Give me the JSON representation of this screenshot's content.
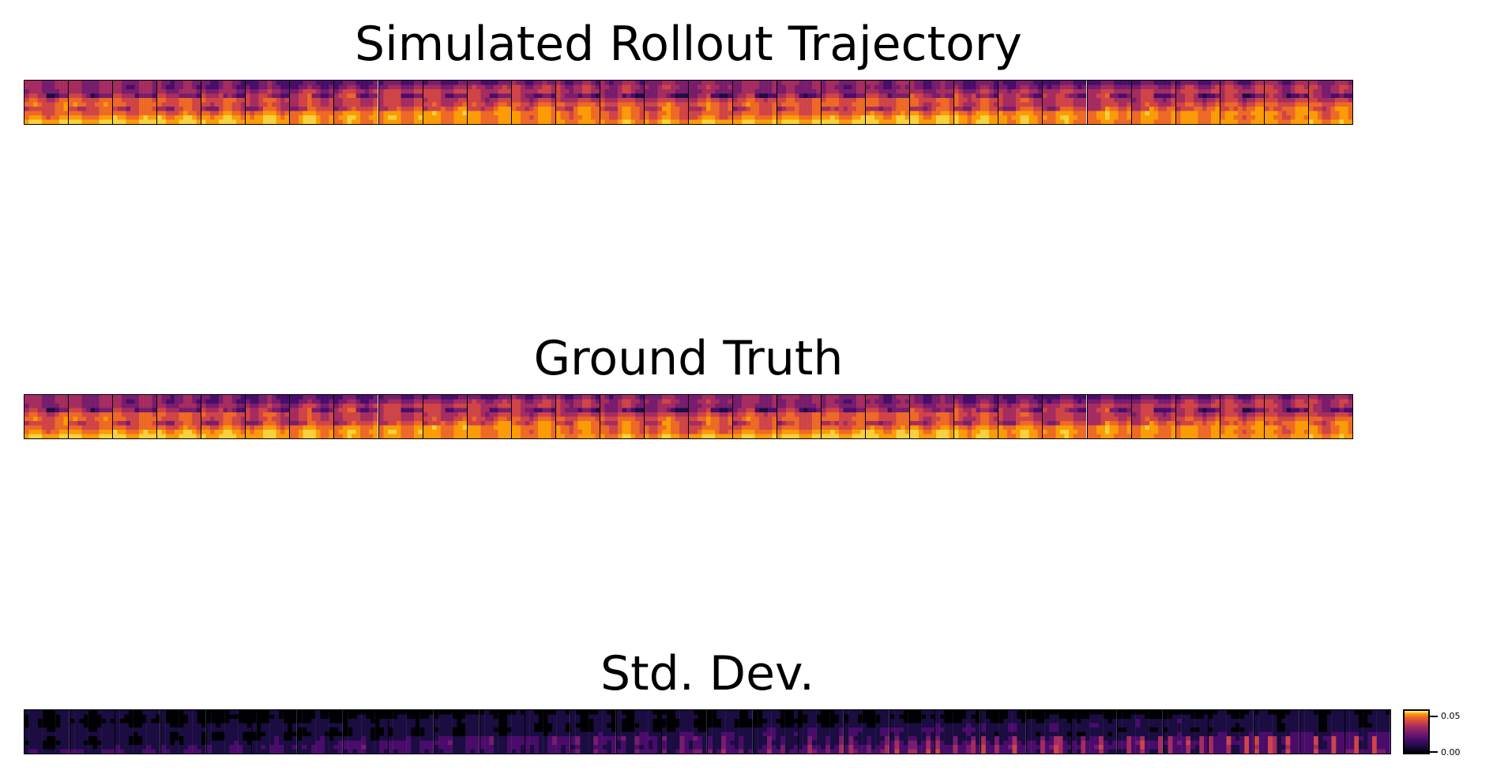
{
  "titles": {
    "rollout": "Simulated Rollout Trajectory",
    "ground_truth": "Ground Truth",
    "std_dev": "Std. Dev."
  },
  "colorbar": {
    "colormap": "inferno",
    "tick_labels": [
      "0.05",
      "0.00"
    ]
  },
  "panels": {
    "rollout": {
      "frames": 30,
      "colormap": "inferno"
    },
    "ground_truth": {
      "frames": 30,
      "colormap": "inferno"
    },
    "std_dev": {
      "frames": 30,
      "colormap": "inferno"
    }
  },
  "colors": {
    "inferno": [
      "#000004",
      "#1b0c41",
      "#4a0c6b",
      "#781c6d",
      "#a52c60",
      "#cf4446",
      "#ed6925",
      "#fb9b06",
      "#f7d13d",
      "#fcffa4"
    ]
  }
}
